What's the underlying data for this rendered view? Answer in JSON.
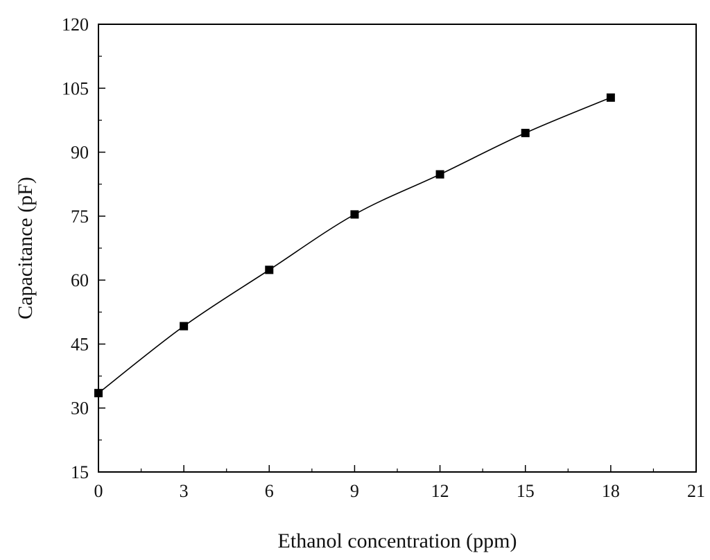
{
  "chart_data": {
    "type": "scatter",
    "title": "",
    "xlabel": "Ethanol concentration (ppm)",
    "ylabel": "Capacitance (pF)",
    "xlim": [
      0,
      21
    ],
    "ylim": [
      15,
      120
    ],
    "xticks": [
      0,
      3,
      6,
      9,
      12,
      15,
      18,
      21
    ],
    "yticks": [
      15,
      30,
      45,
      60,
      75,
      90,
      105,
      120
    ],
    "xtick_labels": [
      "0",
      "3",
      "6",
      "9",
      "12",
      "15",
      "18",
      "21"
    ],
    "ytick_labels": [
      "15",
      "30",
      "45",
      "60",
      "75",
      "90",
      "105",
      "120"
    ],
    "grid": false,
    "series": [
      {
        "marker": "square",
        "line": "smooth fit",
        "color": "#000000",
        "x": [
          0,
          3,
          6,
          9,
          12,
          15,
          18
        ],
        "y": [
          33.5,
          49.2,
          62.4,
          75.4,
          84.8,
          94.5,
          102.8
        ]
      }
    ]
  }
}
